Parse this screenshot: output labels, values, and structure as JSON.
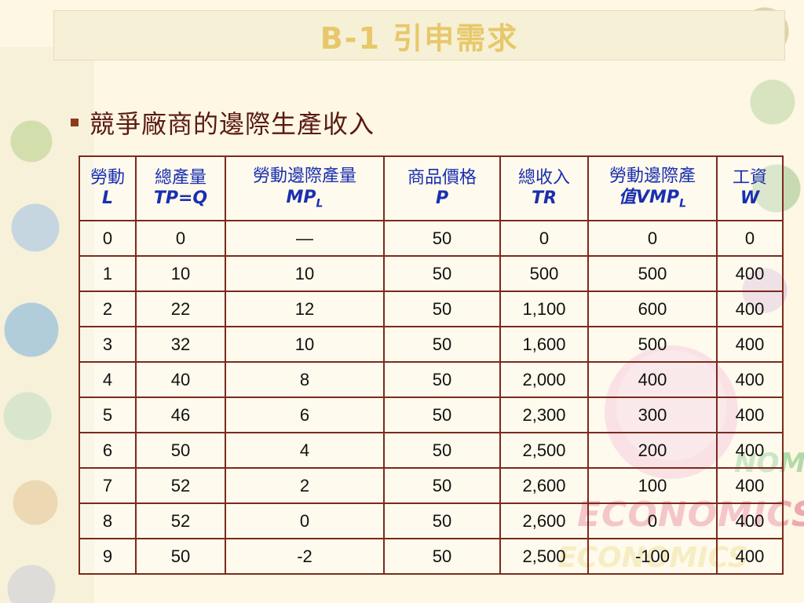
{
  "title": "B-1 引申需求",
  "subtitle": "競爭廠商的邊際生產收入",
  "background": {
    "econ_text_1": "ECONOMICS",
    "econ_text_2": "ECONOMICS",
    "econ_text_3": "NOMIC"
  },
  "table": {
    "headers": [
      {
        "zh": "勞動",
        "en": "L",
        "sub": ""
      },
      {
        "zh": "總產量",
        "en": "TP=Q",
        "sub": ""
      },
      {
        "zh": "勞動邊際產量",
        "en": "MP",
        "sub": "L"
      },
      {
        "zh": "商品價格",
        "en": "P",
        "sub": ""
      },
      {
        "zh": "總收入",
        "en": "TR",
        "sub": ""
      },
      {
        "zh": "勞動邊際產",
        "en": "值VMP",
        "sub": "L"
      },
      {
        "zh": "工資",
        "en": "W",
        "sub": ""
      }
    ],
    "rows": [
      [
        "0",
        "0",
        "—",
        "50",
        "0",
        "0",
        "0"
      ],
      [
        "1",
        "10",
        "10",
        "50",
        "500",
        "500",
        "400"
      ],
      [
        "2",
        "22",
        "12",
        "50",
        "1,100",
        "600",
        "400"
      ],
      [
        "3",
        "32",
        "10",
        "50",
        "1,600",
        "500",
        "400"
      ],
      [
        "4",
        "40",
        "8",
        "50",
        "2,000",
        "400",
        "400"
      ],
      [
        "5",
        "46",
        "6",
        "50",
        "2,300",
        "300",
        "400"
      ],
      [
        "6",
        "50",
        "4",
        "50",
        "2,500",
        "200",
        "400"
      ],
      [
        "7",
        "52",
        "2",
        "50",
        "2,600",
        "100",
        "400"
      ],
      [
        "8",
        "52",
        "0",
        "50",
        "2,600",
        "0",
        "400"
      ],
      [
        "9",
        "50",
        "-2",
        "50",
        "2,500",
        "-100",
        "400"
      ]
    ]
  },
  "colors": {
    "title": "#e7c86a",
    "subtitle": "#5a1a10",
    "header_text": "#1a2fb0",
    "border": "#7b2a1c"
  }
}
